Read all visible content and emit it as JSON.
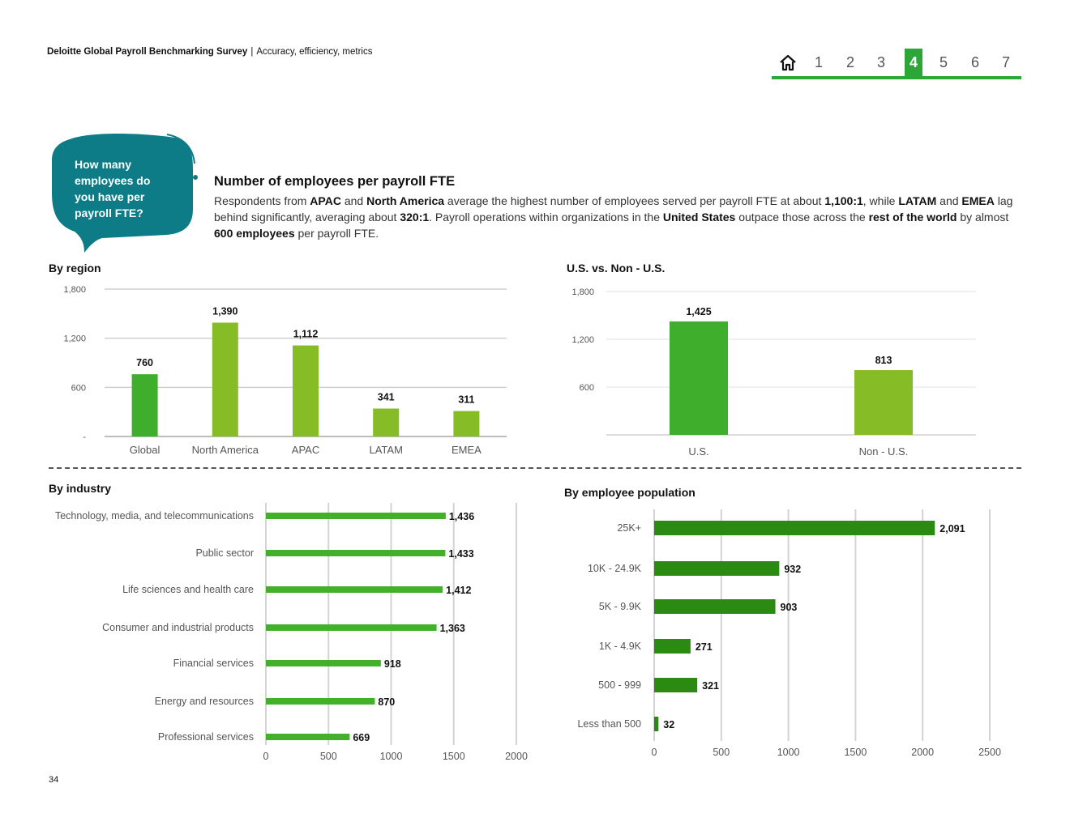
{
  "header": {
    "brand": "Deloitte Global Payroll Benchmarking Survey",
    "separator": "|",
    "subtitle": "Accuracy, efficiency, metrics"
  },
  "nav": {
    "home_icon": "home-icon",
    "pages": [
      "1",
      "2",
      "3",
      "4",
      "5",
      "6",
      "7"
    ],
    "active": "4"
  },
  "question": {
    "line1": "How many",
    "line2": "employees do",
    "line3": "you have per",
    "line4": "payroll FTE?"
  },
  "intro": {
    "title": "Number of employees per payroll FTE",
    "t1": "Respondents from ",
    "b1": "APAC",
    "t2": " and ",
    "b2": "North America",
    "t3": " average the highest number of employees served per payroll FTE at about ",
    "b3": "1,100:1",
    "t4": ", while ",
    "b4": "LATAM",
    "t5": " and ",
    "b5": "EMEA",
    "t6": " lag behind significantly, averaging about ",
    "b6": "320:1",
    "t7": ". Payroll operations within organizations in the ",
    "b7": "United States",
    "t8": " outpace those across the ",
    "b8": "rest of the world",
    "t9": " by almost ",
    "b9": "600 employees",
    "t10": " per payroll FTE."
  },
  "titles": {
    "region": "By region",
    "us": "U.S. vs. Non - U.S.",
    "industry": "By industry",
    "population": "By employee population"
  },
  "colors": {
    "teal": "#0e7c86",
    "green_dark": "#3eae2c",
    "green_light": "#86bc25",
    "green_bar": "#43b02a",
    "green_deep": "#2b8a12",
    "nav_green": "#2ca637"
  },
  "page_number": "34",
  "chart_data": [
    {
      "id": "region",
      "type": "bar",
      "title": "By region",
      "categories": [
        "Global",
        "North America",
        "APAC",
        "LATAM",
        "EMEA"
      ],
      "values": [
        760,
        1390,
        1112,
        341,
        311
      ],
      "labels": [
        "760",
        "1,390",
        "1,112",
        "341",
        "311"
      ],
      "ylim": [
        0,
        1800
      ],
      "yticks": [
        0,
        600,
        1200,
        1800
      ],
      "ytick_labels": [
        "-",
        "600",
        "1,200",
        "1,800"
      ]
    },
    {
      "id": "us",
      "type": "bar",
      "title": "U.S. vs. Non - U.S.",
      "categories": [
        "U.S.",
        "Non - U.S."
      ],
      "values": [
        1425,
        813
      ],
      "labels": [
        "1,425",
        "813"
      ],
      "ylim": [
        0,
        1800
      ],
      "yticks": [
        600,
        1200,
        1800
      ],
      "ytick_labels": [
        "600",
        "1,200",
        "1,800"
      ]
    },
    {
      "id": "industry",
      "type": "bar",
      "orientation": "horizontal",
      "title": "By industry",
      "categories": [
        "Technology, media, and telecommunications",
        "Public sector",
        "Life sciences and health care",
        "Consumer and industrial products",
        "Financial services",
        "Energy and resources",
        "Professional services"
      ],
      "values": [
        1436,
        1433,
        1412,
        1363,
        918,
        870,
        669
      ],
      "labels": [
        "1,436",
        "1,433",
        "1,412",
        "1,363",
        "918",
        "870",
        "669"
      ],
      "xlim": [
        0,
        2000
      ],
      "xticks": [
        0,
        500,
        1000,
        1500,
        2000
      ],
      "xtick_labels": [
        "0",
        "500",
        "1000",
        "1500",
        "2000"
      ]
    },
    {
      "id": "population",
      "type": "bar",
      "orientation": "horizontal",
      "title": "By employee population",
      "categories": [
        "25K+",
        "10K - 24.9K",
        "5K - 9.9K",
        "1K - 4.9K",
        "500 - 999",
        "Less than 500"
      ],
      "values": [
        2091,
        932,
        903,
        271,
        321,
        32
      ],
      "labels": [
        "2,091",
        "932",
        "903",
        "271",
        "321",
        "32"
      ],
      "xlim": [
        0,
        2500
      ],
      "xticks": [
        0,
        500,
        1000,
        1500,
        2000,
        2500
      ],
      "xtick_labels": [
        "0",
        "500",
        "1000",
        "1500",
        "2000",
        "2500"
      ]
    }
  ]
}
